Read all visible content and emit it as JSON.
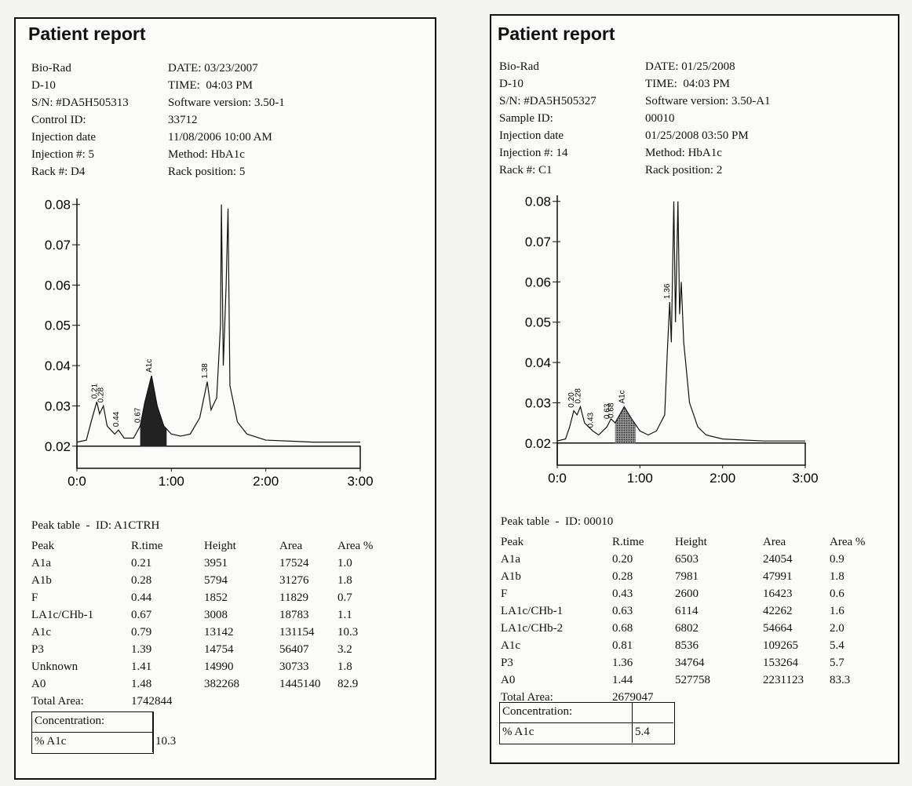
{
  "reports": [
    {
      "title": "Patient report",
      "info": [
        [
          "Bio-Rad",
          "DATE: 03/23/2007"
        ],
        [
          "D-10",
          "TIME:  04:03 PM"
        ],
        [
          "S/N: #DA5H505313",
          "Software version: 3.50-1"
        ],
        [
          "Control ID:",
          "33712"
        ],
        [
          "Injection date",
          "11/08/2006 10:00 AM"
        ],
        [
          "Injection #: 5",
          "Method: HbA1c"
        ],
        [
          "Rack #: D4",
          "Rack position: 5"
        ]
      ],
      "chart": {
        "type": "line",
        "xlim": [
          0,
          3
        ],
        "ylim": [
          0.0145,
          0.0815
        ],
        "xticks": [
          {
            "value": 0,
            "label": "0:0"
          },
          {
            "value": 1,
            "label": "1:00"
          },
          {
            "value": 2,
            "label": "2:00"
          },
          {
            "value": 3,
            "label": "3:00"
          }
        ],
        "yticks": [
          0.02,
          0.03,
          0.04,
          0.05,
          0.06,
          0.07,
          0.08
        ],
        "x": [
          0,
          0.1,
          0.15,
          0.21,
          0.24,
          0.28,
          0.32,
          0.4,
          0.44,
          0.5,
          0.6,
          0.67,
          0.72,
          0.79,
          0.85,
          0.92,
          1.0,
          1.1,
          1.2,
          1.3,
          1.38,
          1.42,
          1.48,
          1.52,
          1.53,
          1.55,
          1.58,
          1.6,
          1.62,
          1.7,
          1.8,
          2.0,
          2.5,
          3.0
        ],
        "values": [
          0.021,
          0.0215,
          0.026,
          0.031,
          0.028,
          0.03,
          0.025,
          0.023,
          0.024,
          0.022,
          0.022,
          0.025,
          0.031,
          0.0375,
          0.03,
          0.025,
          0.023,
          0.0225,
          0.023,
          0.027,
          0.036,
          0.029,
          0.032,
          0.05,
          0.08,
          0.04,
          0.06,
          0.079,
          0.035,
          0.026,
          0.023,
          0.0215,
          0.021,
          0.021
        ],
        "shaded": [
          0.67,
          0.95
        ],
        "peak_labels": [
          {
            "x": 0.21,
            "label": "0.21"
          },
          {
            "x": 0.28,
            "label": "0.28"
          },
          {
            "x": 0.44,
            "label": "0.44"
          },
          {
            "x": 0.67,
            "label": "0.67"
          },
          {
            "x": 0.79,
            "label": "A1c"
          },
          {
            "x": 1.38,
            "label": "1.38"
          }
        ]
      },
      "peak_table": {
        "title": "Peak table  -  ID: A1CTRH",
        "columns": [
          "Peak",
          "R.time",
          "Height",
          "Area",
          "Area %"
        ],
        "rows": [
          [
            "A1a",
            "0.21",
            "3951",
            "17524",
            "1.0"
          ],
          [
            "A1b",
            "0.28",
            "5794",
            "31276",
            "1.8"
          ],
          [
            "F",
            "0.44",
            "1852",
            "11829",
            "0.7"
          ],
          [
            "LA1c/CHb-1",
            "0.67",
            "3008",
            "18783",
            "1.1"
          ],
          [
            "A1c",
            "0.79",
            "13142",
            "131154",
            "10.3"
          ],
          [
            "P3",
            "1.39",
            "14754",
            "56407",
            "3.2"
          ],
          [
            "Unknown",
            "1.41",
            "14990",
            "30733",
            "1.8"
          ],
          [
            "A0",
            "1.48",
            "382268",
            "1445140",
            "82.9"
          ]
        ],
        "total_label": "Total Area:",
        "total": "1742844"
      },
      "concentration": {
        "label": "Concentration:",
        "name": "% A1c",
        "value": "10.3"
      }
    },
    {
      "title": "Patient report",
      "info": [
        [
          "Bio-Rad",
          "DATE: 01/25/2008"
        ],
        [
          "D-10",
          "TIME:  04:03 PM"
        ],
        [
          "S/N: #DA5H505327",
          "Software version: 3.50-A1"
        ],
        [
          "Sample ID:",
          "00010"
        ],
        [
          "Injection date",
          "01/25/2008 03:50 PM"
        ],
        [
          "Injection #: 14",
          "Method: HbA1c"
        ],
        [
          "Rack #: C1",
          "Rack position: 2"
        ]
      ],
      "chart": {
        "type": "line",
        "xlim": [
          0,
          3
        ],
        "ylim": [
          0.0145,
          0.0815
        ],
        "xticks": [
          {
            "value": 0,
            "label": "0:0"
          },
          {
            "value": 1,
            "label": "1:00"
          },
          {
            "value": 2,
            "label": "2:00"
          },
          {
            "value": 3,
            "label": "3:00"
          }
        ],
        "yticks": [
          0.02,
          0.03,
          0.04,
          0.05,
          0.06,
          0.07,
          0.08
        ],
        "x": [
          0,
          0.1,
          0.15,
          0.2,
          0.24,
          0.28,
          0.33,
          0.43,
          0.5,
          0.6,
          0.65,
          0.7,
          0.81,
          0.9,
          1.0,
          1.1,
          1.2,
          1.3,
          1.33,
          1.36,
          1.38,
          1.41,
          1.43,
          1.46,
          1.48,
          1.5,
          1.53,
          1.6,
          1.7,
          1.8,
          2.0,
          2.5,
          3.0
        ],
        "values": [
          0.0205,
          0.021,
          0.024,
          0.028,
          0.027,
          0.029,
          0.025,
          0.023,
          0.022,
          0.024,
          0.026,
          0.025,
          0.029,
          0.026,
          0.023,
          0.022,
          0.023,
          0.027,
          0.042,
          0.055,
          0.045,
          0.08,
          0.05,
          0.08,
          0.052,
          0.06,
          0.045,
          0.03,
          0.024,
          0.022,
          0.021,
          0.0205,
          0.0205
        ],
        "shaded": [
          0.7,
          0.95
        ],
        "peak_labels": [
          {
            "x": 0.2,
            "label": "0.20"
          },
          {
            "x": 0.28,
            "label": "0.28"
          },
          {
            "x": 0.43,
            "label": "0.43"
          },
          {
            "x": 0.63,
            "label": "0.63"
          },
          {
            "x": 0.68,
            "label": "0.68"
          },
          {
            "x": 0.81,
            "label": "A1c"
          },
          {
            "x": 1.36,
            "label": "1.36"
          }
        ]
      },
      "peak_table": {
        "title": "Peak table  -  ID: 00010",
        "columns": [
          "Peak",
          "R.time",
          "Height",
          "Area",
          "Area %"
        ],
        "rows": [
          [
            "A1a",
            "0.20",
            "6503",
            "24054",
            "0.9"
          ],
          [
            "A1b",
            "0.28",
            "7981",
            "47991",
            "1.8"
          ],
          [
            "F",
            "0.43",
            "2600",
            "16423",
            "0.6"
          ],
          [
            "LA1c/CHb-1",
            "0.63",
            "6114",
            "42262",
            "1.6"
          ],
          [
            "LA1c/CHb-2",
            "0.68",
            "6802",
            "54664",
            "2.0"
          ],
          [
            "A1c",
            "0.81",
            "8536",
            "109265",
            "5.4"
          ],
          [
            "P3",
            "1.36",
            "34764",
            "153264",
            "5.7"
          ],
          [
            "A0",
            "1.44",
            "527758",
            "2231123",
            "83.3"
          ]
        ],
        "total_label": "Total Area:",
        "total": "2679047"
      },
      "concentration": {
        "label": "Concentration:",
        "name": "% A1c",
        "value": "5.4"
      }
    }
  ]
}
